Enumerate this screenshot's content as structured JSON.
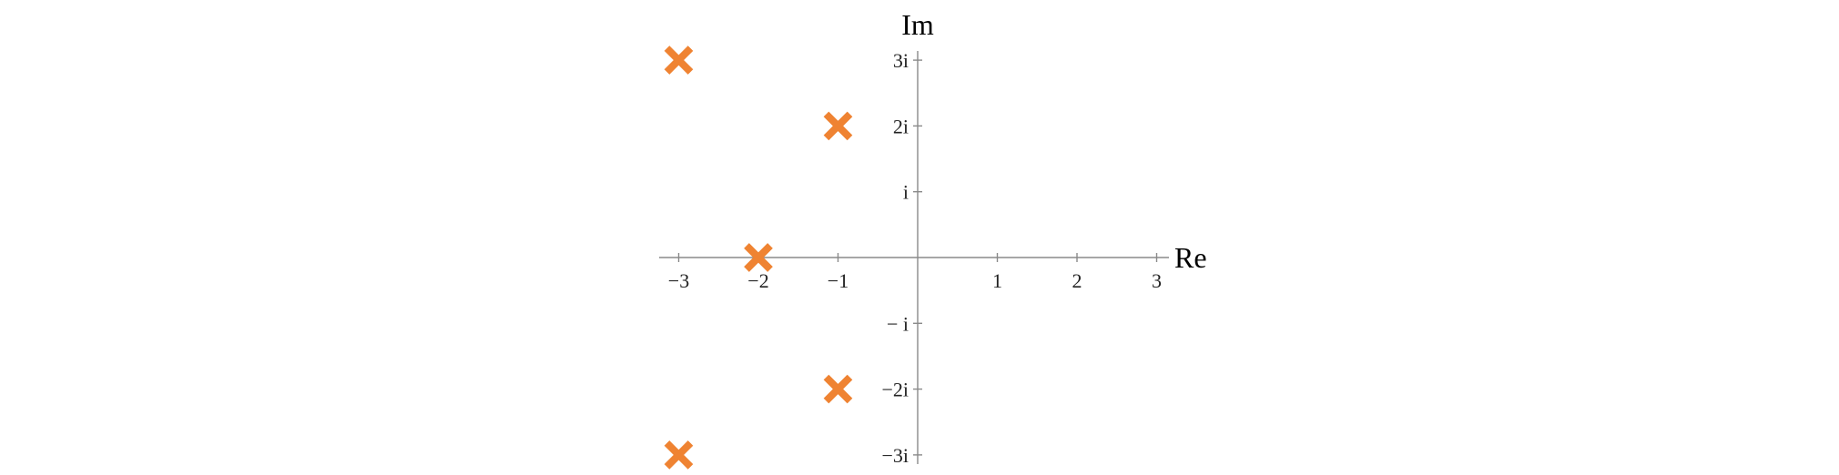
{
  "chart_data": {
    "type": "scatter",
    "title": "",
    "xlabel": "Re",
    "ylabel": "Im",
    "xlim": [
      -3.25,
      3.25
    ],
    "ylim": [
      -3.05,
      3.05
    ],
    "x_ticks": [
      {
        "value": -3,
        "label": "−3"
      },
      {
        "value": -2,
        "label": "−2"
      },
      {
        "value": -1,
        "label": "−1"
      },
      {
        "value": 1,
        "label": "1"
      },
      {
        "value": 2,
        "label": "2"
      },
      {
        "value": 3,
        "label": "3"
      }
    ],
    "y_ticks": [
      {
        "value": 3,
        "label": "3i"
      },
      {
        "value": 2,
        "label": "2i"
      },
      {
        "value": 1,
        "label": "i"
      },
      {
        "value": -1,
        "label": "− i"
      },
      {
        "value": -2,
        "label": "−2i"
      },
      {
        "value": -3,
        "label": "−3i"
      }
    ],
    "grid": false,
    "marker": "x",
    "marker_color": "#ef8332",
    "axis_color": "#8a8a8a",
    "points": [
      {
        "x": -3,
        "y": 3
      },
      {
        "x": -1,
        "y": 2
      },
      {
        "x": -2,
        "y": 0
      },
      {
        "x": -1,
        "y": -2
      },
      {
        "x": -3,
        "y": -3
      }
    ]
  }
}
